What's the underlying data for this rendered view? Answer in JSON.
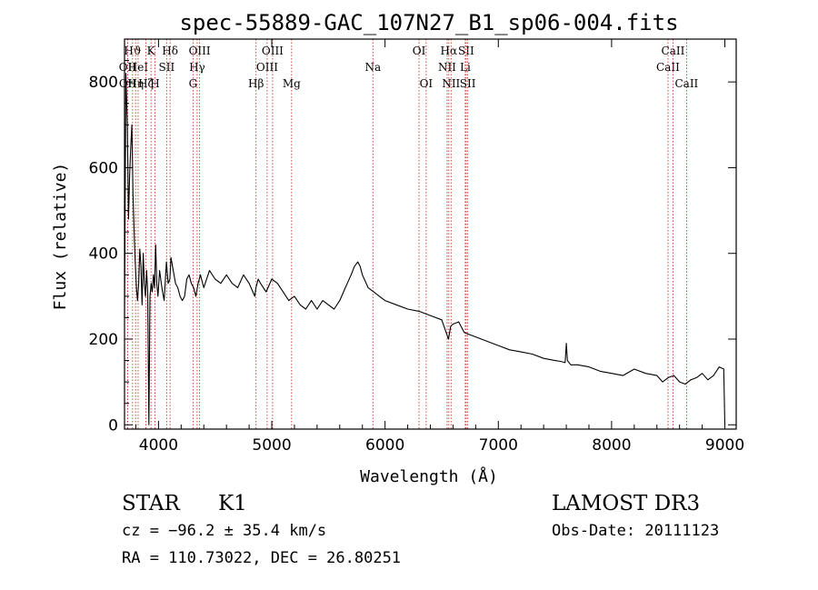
{
  "chart_data": {
    "type": "line",
    "title": "spec-55889-GAC_107N27_B1_sp06-004.fits",
    "xlabel": "Wavelength (Å)",
    "ylabel": "Flux (relative)",
    "xlim": [
      3700,
      9100
    ],
    "ylim": [
      -10,
      900
    ],
    "xticks": [
      4000,
      5000,
      6000,
      7000,
      8000,
      9000
    ],
    "yticks": [
      0,
      200,
      400,
      600,
      800
    ],
    "series": [
      {
        "name": "flux",
        "x": [
          3700,
          3712,
          3725,
          3735,
          3745,
          3755,
          3765,
          3775,
          3785,
          3795,
          3805,
          3815,
          3825,
          3835,
          3845,
          3855,
          3865,
          3875,
          3885,
          3895,
          3905,
          3915,
          3925,
          3935,
          3945,
          3955,
          3965,
          3975,
          3985,
          3995,
          4010,
          4030,
          4050,
          4070,
          4085,
          4100,
          4110,
          4130,
          4150,
          4170,
          4190,
          4210,
          4230,
          4250,
          4270,
          4290,
          4310,
          4330,
          4350,
          4370,
          4400,
          4450,
          4500,
          4550,
          4600,
          4650,
          4700,
          4750,
          4800,
          4850,
          4860,
          4880,
          4900,
          4950,
          5000,
          5050,
          5100,
          5150,
          5200,
          5250,
          5300,
          5350,
          5400,
          5450,
          5500,
          5550,
          5600,
          5650,
          5700,
          5730,
          5760,
          5780,
          5800,
          5850,
          5900,
          5950,
          6000,
          6100,
          6200,
          6300,
          6400,
          6500,
          6560,
          6580,
          6600,
          6650,
          6700,
          6800,
          6900,
          7000,
          7100,
          7200,
          7300,
          7400,
          7500,
          7550,
          7590,
          7600,
          7610,
          7640,
          7700,
          7800,
          7900,
          8000,
          8100,
          8200,
          8300,
          8400,
          8450,
          8500,
          8550,
          8600,
          8650,
          8700,
          8750,
          8800,
          8850,
          8900,
          8950,
          8990,
          9000
        ],
        "y": [
          250,
          820,
          700,
          480,
          580,
          650,
          700,
          540,
          450,
          380,
          320,
          290,
          330,
          410,
          370,
          280,
          400,
          330,
          300,
          360,
          310,
          0,
          300,
          330,
          310,
          350,
          320,
          420,
          330,
          300,
          360,
          320,
          290,
          380,
          330,
          340,
          390,
          360,
          330,
          320,
          300,
          290,
          300,
          340,
          350,
          330,
          320,
          300,
          330,
          350,
          320,
          360,
          340,
          330,
          350,
          330,
          320,
          350,
          330,
          300,
          320,
          340,
          330,
          310,
          340,
          330,
          310,
          290,
          300,
          280,
          270,
          290,
          270,
          290,
          280,
          270,
          290,
          320,
          350,
          370,
          380,
          370,
          350,
          320,
          310,
          300,
          290,
          280,
          270,
          265,
          255,
          245,
          200,
          230,
          235,
          240,
          215,
          205,
          195,
          185,
          175,
          170,
          165,
          155,
          150,
          148,
          145,
          190,
          150,
          140,
          140,
          135,
          125,
          120,
          115,
          130,
          120,
          115,
          100,
          110,
          115,
          100,
          95,
          105,
          110,
          120,
          105,
          115,
          135,
          130,
          0
        ]
      }
    ],
    "lines": [
      {
        "wave": 3727,
        "label": "OII",
        "row": 1
      },
      {
        "wave": 3728,
        "label": "OII",
        "row": 2
      },
      {
        "wave": 3771,
        "label": "Hϑ",
        "row": 0
      },
      {
        "wave": 3798,
        "label": "Hη",
        "row": 2
      },
      {
        "wave": 3820,
        "label": "HeI",
        "row": 1
      },
      {
        "wave": 3889,
        "label": "Hζ",
        "row": 2
      },
      {
        "wave": 3934,
        "label": "K",
        "row": 0
      },
      {
        "wave": 3969,
        "label": "H",
        "row": 2
      },
      {
        "wave": 4072,
        "label": "SII",
        "row": 1
      },
      {
        "wave": 4102,
        "label": "Hδ",
        "row": 0
      },
      {
        "wave": 4305,
        "label": "G",
        "row": 2
      },
      {
        "wave": 4341,
        "label": "Hγ",
        "row": 1
      },
      {
        "wave": 4363,
        "label": "OIII",
        "row": 0
      },
      {
        "wave": 4861,
        "label": "Hβ",
        "row": 2
      },
      {
        "wave": 4959,
        "label": "OIII",
        "row": 1
      },
      {
        "wave": 5007,
        "label": "OIII",
        "row": 0
      },
      {
        "wave": 5175,
        "label": "Mg",
        "row": 2
      },
      {
        "wave": 5893,
        "label": "Na",
        "row": 1
      },
      {
        "wave": 6300,
        "label": "OI",
        "row": 0
      },
      {
        "wave": 6363,
        "label": "OI",
        "row": 2
      },
      {
        "wave": 6548,
        "label": "NII",
        "row": 1
      },
      {
        "wave": 6563,
        "label": "Hα",
        "row": 0
      },
      {
        "wave": 6583,
        "label": "NII",
        "row": 2
      },
      {
        "wave": 6708,
        "label": "Li",
        "row": 1
      },
      {
        "wave": 6716,
        "label": "SII",
        "row": 0
      },
      {
        "wave": 6730,
        "label": "SII",
        "row": 2
      },
      {
        "wave": 8498,
        "label": "CaII",
        "row": 1
      },
      {
        "wave": 8542,
        "label": "CaII",
        "row": 0
      },
      {
        "wave": 8662,
        "label": "CaII",
        "row": 2
      }
    ]
  },
  "info": {
    "class": "STAR",
    "subclass": "K1",
    "survey": "LAMOST DR3",
    "cz": "cz = −96.2 ± 35.4 km/s",
    "obs_date": "Obs-Date: 20111123",
    "radec": "RA = 110.73022, DEC =  26.80251"
  }
}
